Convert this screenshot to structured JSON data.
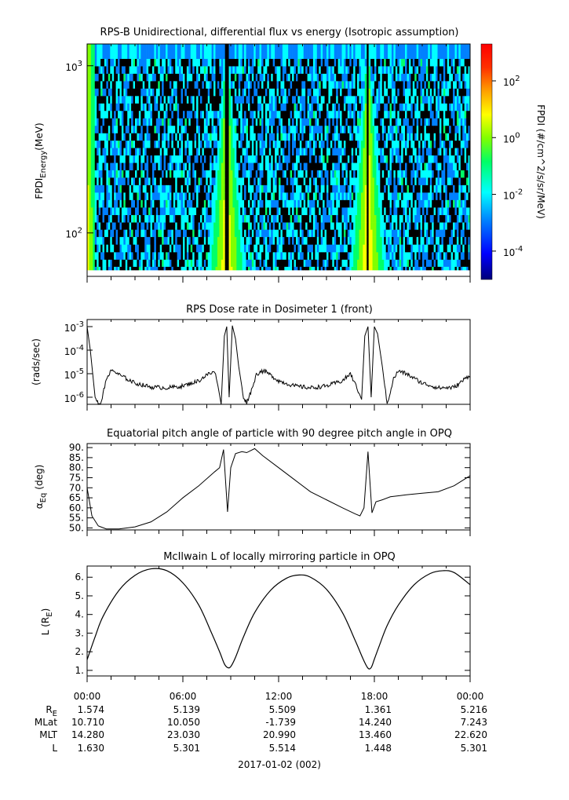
{
  "chart_data": [
    {
      "type": "heatmap",
      "title": "RPS-B  Unidirectional, differential flux vs energy (Isotropic assumption)",
      "ylabel_main": "FPDI",
      "ylabel_sub": "Energy",
      "ylabel_unit": "(MeV)",
      "yscale": "log",
      "ylim": [
        55,
        1350
      ],
      "y_ticks": [
        {
          "base": "10",
          "exp": "3",
          "value": 1000
        },
        {
          "base": "10",
          "exp": "2",
          "value": 100
        }
      ],
      "energy_bands": [
        60,
        66,
        73,
        81,
        90,
        100,
        110,
        122,
        135,
        150,
        166,
        184,
        204,
        226,
        250,
        277,
        307,
        340,
        376,
        417,
        462,
        512,
        567,
        628,
        696,
        771,
        854,
        946,
        1048,
        1160
      ],
      "colorbar": {
        "label": "FPDI (#/cm^2/s/sr/MeV)",
        "scale": "log",
        "range_log10": [
          -5,
          3.3
        ],
        "ticks": [
          {
            "base": "10",
            "exp": "2",
            "value_log10": 2
          },
          {
            "base": "10",
            "exp": "0",
            "value_log10": 0
          },
          {
            "base": "10",
            "exp": "-2",
            "value_log10": -2
          },
          {
            "base": "10",
            "exp": "-4",
            "value_log10": -4
          }
        ],
        "colors": [
          "#00007a",
          "#0000ff",
          "#0080ff",
          "#00ffff",
          "#00ff66",
          "#80ff00",
          "#ffff00",
          "#ffa000",
          "#ff3000",
          "#ff0000"
        ]
      },
      "belt_crossings_hours": [
        8.75,
        17.6
      ],
      "peak_flux_log10": 0.9,
      "background_flux_log10": -2.6
    },
    {
      "type": "line",
      "title": "RPS  Dose rate in Dosimeter 1 (front)",
      "ylabel": "(rads/sec)",
      "yscale": "log",
      "ylim": [
        5e-07,
        0.002
      ],
      "y_ticks": [
        {
          "base": "10",
          "exp": "-3",
          "value": 0.001
        },
        {
          "base": "10",
          "exp": "-4",
          "value": 0.0001
        },
        {
          "base": "10",
          "exp": "-5",
          "value": 1e-05
        },
        {
          "base": "10",
          "exp": "-6",
          "value": 1e-06
        }
      ],
      "series": [
        {
          "x": [
            0,
            0.2,
            0.5,
            0.8,
            1.0,
            1.3,
            1.6,
            2.0,
            3.0,
            4.0,
            5.0,
            6.0,
            7.0,
            7.5,
            8.0,
            8.2,
            8.4,
            8.6,
            8.75,
            8.9,
            9.1,
            9.3,
            9.5,
            9.8,
            10.0,
            10.3,
            10.6,
            10.9,
            11.2,
            12.0,
            13.0,
            14.0,
            15.0,
            16.0,
            16.5,
            17.0,
            17.2,
            17.4,
            17.6,
            17.8,
            18.0,
            18.2,
            18.5,
            18.8,
            19.2,
            19.5,
            20.0,
            21.0,
            22.0,
            23.0,
            24.0
          ],
          "y": [
            0.001,
            0.0001,
            1e-06,
            4e-07,
            1.5e-06,
            9e-06,
            1.4e-05,
            9e-06,
            4e-06,
            2.7e-06,
            2.5e-06,
            3e-06,
            5e-06,
            9e-06,
            1.2e-05,
            3e-06,
            5e-07,
            0.0004,
            0.001,
            1e-06,
            0.0011,
            0.0003,
            2e-05,
            1e-06,
            6e-07,
            2e-06,
            9e-06,
            1.3e-05,
            1.2e-05,
            5e-06,
            3e-06,
            2.5e-06,
            3e-06,
            5e-06,
            1e-05,
            1.8e-06,
            8e-07,
            0.0004,
            0.001,
            1e-06,
            0.001,
            0.0005,
            2e-05,
            5e-07,
            6e-06,
            1.3e-05,
            1e-05,
            4e-06,
            2.5e-06,
            2.6e-06,
            9e-06
          ]
        }
      ]
    },
    {
      "type": "line",
      "title": "Equatorial pitch angle of particle with 90 degree pitch angle in OPQ",
      "ylabel_main": "α",
      "ylabel_sub": "Eq",
      "ylabel_unit": "(deg)",
      "ylim": [
        49,
        92
      ],
      "y_ticks": [
        90,
        85,
        80,
        75,
        70,
        65,
        60,
        55,
        50
      ],
      "y_tick_labels": [
        "90.",
        "85.",
        "80.",
        "75.",
        "70.",
        "65.",
        "60.",
        "55.",
        "50."
      ],
      "series": [
        {
          "x": [
            0,
            0.3,
            0.7,
            1.2,
            2.0,
            3.0,
            4.0,
            5.0,
            6.0,
            7.0,
            8.0,
            8.3,
            8.55,
            8.8,
            9.0,
            9.3,
            9.7,
            10.0,
            10.5,
            11.0,
            12.0,
            13.0,
            14.0,
            15.0,
            16.0,
            16.8,
            17.1,
            17.35,
            17.6,
            17.85,
            18.1,
            18.5,
            19.0,
            20.0,
            21.0,
            22.0,
            23.0,
            24.0
          ],
          "y": [
            70,
            56,
            51,
            49.5,
            49.5,
            50.5,
            53,
            58,
            65,
            71,
            78,
            80,
            89,
            58,
            80,
            87,
            88,
            87.5,
            89.5,
            86,
            80,
            74,
            68,
            64,
            60,
            57,
            56,
            60,
            88,
            57.5,
            63,
            64,
            65.5,
            66.5,
            67.3,
            68,
            71,
            76
          ]
        }
      ]
    },
    {
      "type": "line",
      "title": "McIlwain L of locally mirroring particle in OPQ",
      "ylabel_main": "L (R",
      "ylabel_sub": "E",
      "ylabel_unit": ")",
      "ylim": [
        0.7,
        6.6
      ],
      "y_ticks": [
        6,
        5,
        4,
        3,
        2,
        1
      ],
      "y_tick_labels": [
        "6.",
        "5.",
        "4.",
        "3.",
        "2.",
        "1."
      ],
      "series": [
        {
          "x": [
            0,
            0.5,
            1.0,
            2.0,
            3.0,
            4.0,
            5.0,
            6.0,
            7.0,
            7.8,
            8.3,
            8.6,
            8.8,
            9.0,
            9.3,
            9.8,
            10.5,
            11.5,
            12.5,
            13.3,
            14.0,
            15.0,
            16.0,
            16.8,
            17.3,
            17.6,
            17.8,
            18.0,
            18.3,
            18.8,
            19.5,
            20.5,
            21.5,
            22.3,
            23.0,
            24.0
          ],
          "y": [
            1.57,
            2.8,
            3.9,
            5.3,
            6.1,
            6.45,
            6.35,
            5.7,
            4.5,
            3.0,
            2.0,
            1.35,
            1.15,
            1.2,
            1.7,
            2.8,
            4.1,
            5.3,
            5.95,
            6.12,
            6.0,
            5.35,
            4.1,
            2.6,
            1.6,
            1.12,
            1.15,
            1.6,
            2.3,
            3.4,
            4.5,
            5.6,
            6.2,
            6.35,
            6.25,
            5.6
          ]
        }
      ]
    }
  ],
  "x_axis": {
    "tick_labels": [
      "00:00",
      "06:00",
      "12:00",
      "18:00",
      "00:00"
    ],
    "tick_hours": [
      0,
      6,
      12,
      18,
      24
    ],
    "minor_tick_step_hours": 1.5,
    "range_hours": [
      0,
      24
    ]
  },
  "ephemeris_table": {
    "row_labels": [
      {
        "main": "R",
        "sub": "E"
      },
      {
        "main": "MLat",
        "sub": ""
      },
      {
        "main": "MLT",
        "sub": ""
      },
      {
        "main": "L",
        "sub": ""
      }
    ],
    "rows": [
      [
        "1.574",
        "5.139",
        "5.509",
        "1.361",
        "5.216"
      ],
      [
        "10.710",
        "10.050",
        "-1.739",
        "14.240",
        "7.243"
      ],
      [
        "14.280",
        "23.030",
        "20.990",
        "13.460",
        "22.620"
      ],
      [
        "1.630",
        "5.301",
        "5.514",
        "1.448",
        "5.301"
      ]
    ]
  },
  "date_label": "2017-01-02 (002)"
}
